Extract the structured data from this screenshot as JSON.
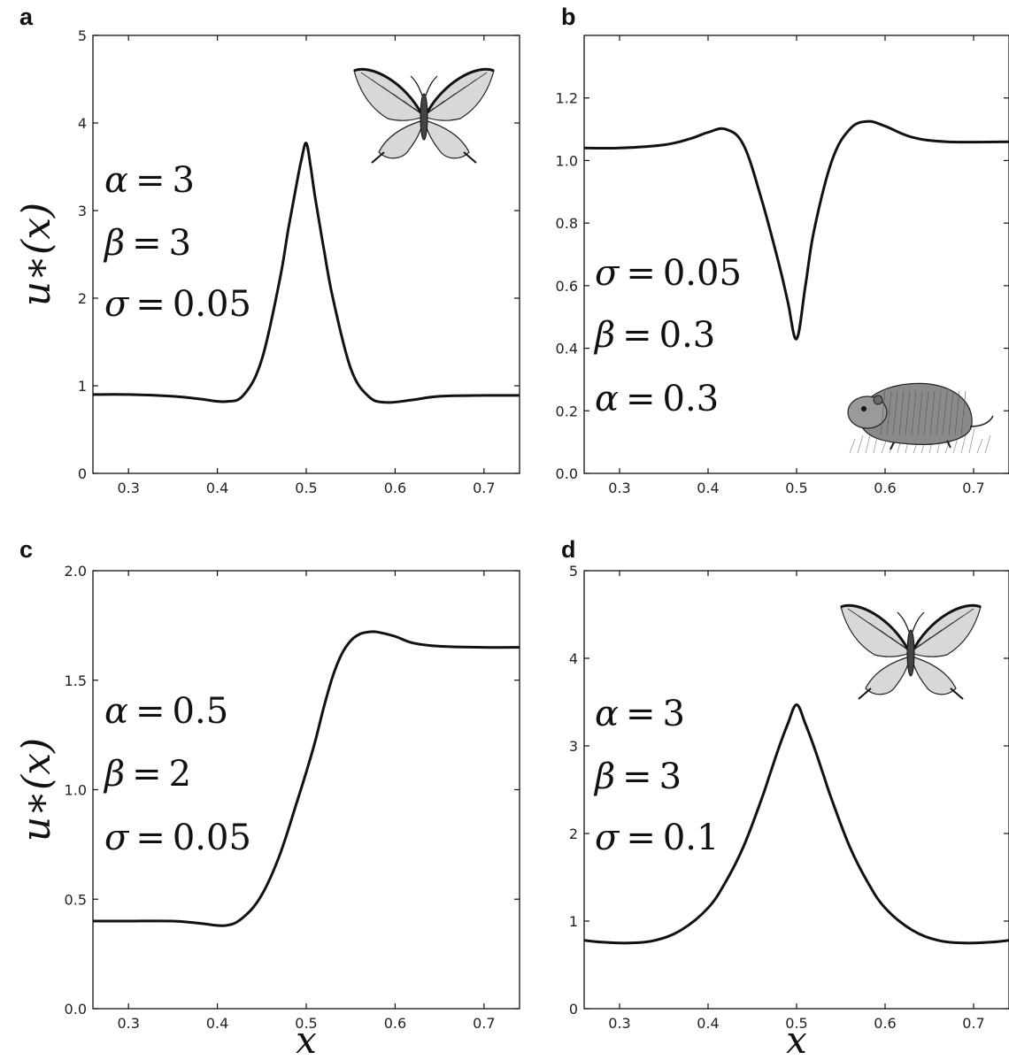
{
  "chart_data": [
    {
      "panel": "a",
      "type": "line",
      "ylabel": "u∗(x)",
      "xlabel": "",
      "xlim": [
        0.26,
        0.74
      ],
      "ylim": [
        0,
        5
      ],
      "xticks": [
        "0.3",
        "0.4",
        "0.5",
        "0.6",
        "0.7"
      ],
      "yticks": [
        "0",
        "1",
        "2",
        "3",
        "4",
        "5"
      ],
      "annotations": [
        "α = 3",
        "β = 3",
        "σ = 0.05"
      ],
      "illustration": "butterfly-icon",
      "series": [
        {
          "x": [
            0.26,
            0.3,
            0.35,
            0.38,
            0.41,
            0.43,
            0.45,
            0.47,
            0.48,
            0.49,
            0.495,
            0.5,
            0.505,
            0.51,
            0.52,
            0.53,
            0.55,
            0.57,
            0.59,
            0.62,
            0.65,
            0.7,
            0.74
          ],
          "y": [
            0.9,
            0.9,
            0.88,
            0.85,
            0.82,
            0.9,
            1.3,
            2.2,
            2.8,
            3.35,
            3.6,
            3.77,
            3.5,
            3.15,
            2.55,
            2.0,
            1.2,
            0.88,
            0.81,
            0.84,
            0.88,
            0.89,
            0.89
          ]
        }
      ]
    },
    {
      "panel": "b",
      "type": "line",
      "ylabel": "",
      "xlabel": "",
      "xlim": [
        0.26,
        0.74
      ],
      "ylim": [
        0,
        1.4
      ],
      "xticks": [
        "0.3",
        "0.4",
        "0.5",
        "0.6",
        "0.7"
      ],
      "yticks": [
        "0.0",
        "0.2",
        "0.4",
        "0.6",
        "0.8",
        "1.0",
        "1.2"
      ],
      "annotations": [
        "σ = 0.05",
        "β = 0.3",
        "α = 0.3"
      ],
      "illustration": "vole-icon",
      "series": [
        {
          "x": [
            0.26,
            0.3,
            0.35,
            0.38,
            0.4,
            0.42,
            0.44,
            0.46,
            0.48,
            0.49,
            0.5,
            0.51,
            0.52,
            0.54,
            0.56,
            0.58,
            0.6,
            0.63,
            0.67,
            0.74
          ],
          "y": [
            1.04,
            1.04,
            1.05,
            1.07,
            1.09,
            1.1,
            1.05,
            0.88,
            0.67,
            0.55,
            0.43,
            0.6,
            0.78,
            1.0,
            1.1,
            1.125,
            1.11,
            1.075,
            1.06,
            1.06
          ]
        }
      ]
    },
    {
      "panel": "c",
      "type": "line",
      "ylabel": "u∗(x)",
      "xlabel": "x",
      "xlim": [
        0.26,
        0.74
      ],
      "ylim": [
        0,
        2.0
      ],
      "xticks": [
        "0.3",
        "0.4",
        "0.5",
        "0.6",
        "0.7"
      ],
      "yticks": [
        "0.0",
        "0.5",
        "1.0",
        "1.5",
        "2.0"
      ],
      "annotations": [
        "α = 0.5",
        "β = 2",
        "σ = 0.05"
      ],
      "illustration": "",
      "series": [
        {
          "x": [
            0.26,
            0.3,
            0.35,
            0.38,
            0.41,
            0.43,
            0.45,
            0.47,
            0.49,
            0.5,
            0.51,
            0.52,
            0.53,
            0.54,
            0.55,
            0.56,
            0.57,
            0.58,
            0.6,
            0.62,
            0.65,
            0.7,
            0.74
          ],
          "y": [
            0.4,
            0.4,
            0.4,
            0.39,
            0.38,
            0.42,
            0.52,
            0.7,
            0.95,
            1.08,
            1.22,
            1.38,
            1.52,
            1.62,
            1.68,
            1.71,
            1.72,
            1.72,
            1.7,
            1.67,
            1.655,
            1.65,
            1.65
          ]
        }
      ]
    },
    {
      "panel": "d",
      "type": "line",
      "ylabel": "",
      "xlabel": "x",
      "xlim": [
        0.26,
        0.74
      ],
      "ylim": [
        0,
        5
      ],
      "xticks": [
        "0.3",
        "0.4",
        "0.5",
        "0.6",
        "0.7"
      ],
      "yticks": [
        "0",
        "1",
        "2",
        "3",
        "4",
        "5"
      ],
      "annotations": [
        "α = 3",
        "β = 3",
        "σ = 0.1"
      ],
      "illustration": "butterfly-icon",
      "series": [
        {
          "x": [
            0.26,
            0.28,
            0.31,
            0.34,
            0.37,
            0.4,
            0.42,
            0.44,
            0.46,
            0.47,
            0.48,
            0.49,
            0.5,
            0.51,
            0.52,
            0.53,
            0.54,
            0.56,
            0.58,
            0.6,
            0.63,
            0.66,
            0.69,
            0.72,
            0.74
          ],
          "y": [
            0.78,
            0.76,
            0.75,
            0.78,
            0.9,
            1.15,
            1.45,
            1.85,
            2.38,
            2.68,
            2.98,
            3.25,
            3.47,
            3.25,
            2.98,
            2.68,
            2.38,
            1.85,
            1.45,
            1.15,
            0.9,
            0.78,
            0.75,
            0.76,
            0.78
          ]
        }
      ]
    }
  ]
}
